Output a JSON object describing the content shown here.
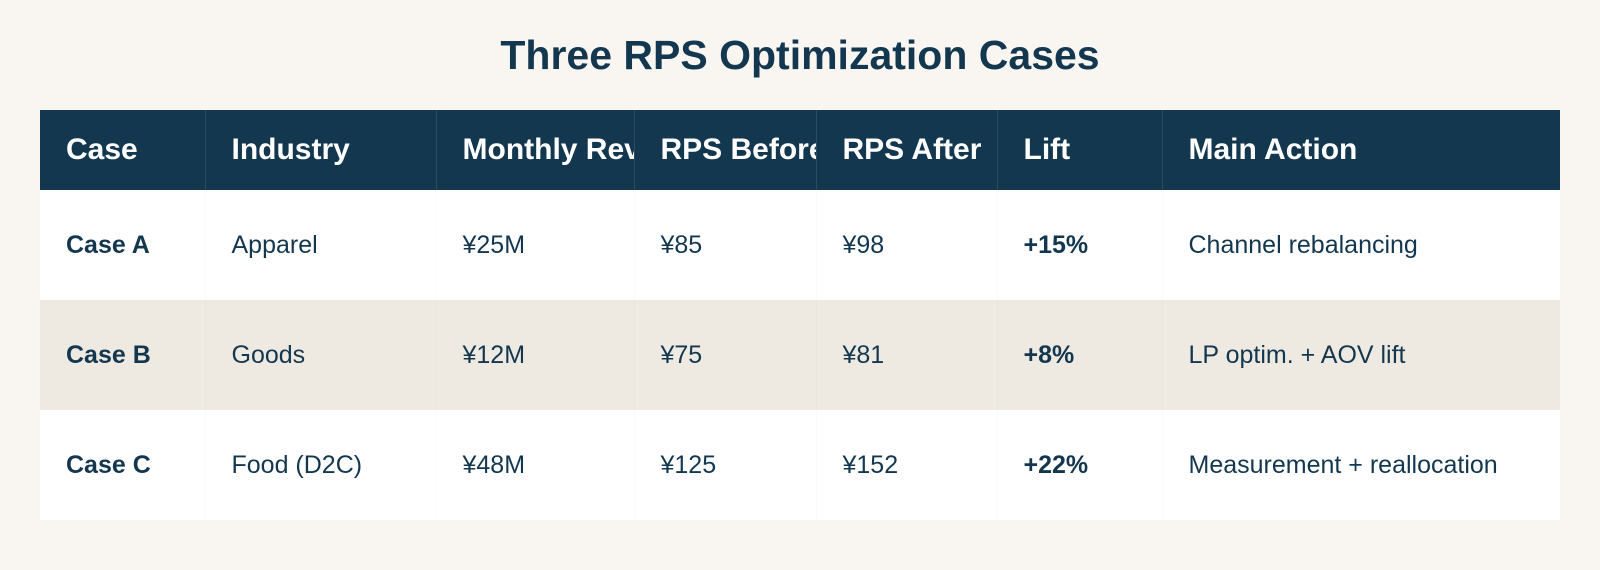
{
  "title": "Three RPS Optimization Cases",
  "table": {
    "headers": [
      "Case",
      "Industry",
      "Monthly Rev",
      "RPS Before",
      "RPS After",
      "Lift",
      "Main Action"
    ],
    "rows": [
      [
        "Case A",
        "Apparel",
        "¥25M",
        "¥85",
        "¥98",
        "+15%",
        "Channel rebalancing"
      ],
      [
        "Case B",
        "Goods",
        "¥12M",
        "¥75",
        "¥81",
        "+8%",
        "LP optim. + AOV lift"
      ],
      [
        "Case C",
        "Food (D2C)",
        "¥48M",
        "¥125",
        "¥152",
        "+22%",
        "Measurement + reallocation"
      ]
    ]
  },
  "colors": {
    "header_bg": "#13374f",
    "header_text": "#ffffff",
    "text": "#13374f",
    "page_bg": "#f9f6f1",
    "row_alt_bg": "#eee9e1",
    "row_bg": "#ffffff"
  }
}
